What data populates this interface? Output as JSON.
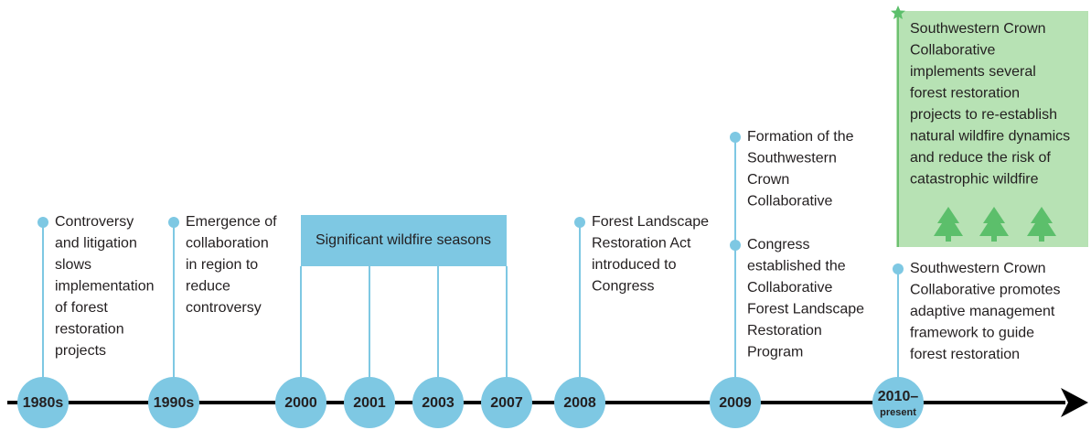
{
  "timeline": [
    {
      "year": "1980s",
      "events": [
        {
          "lines": [
            "Controversy",
            "and litigation",
            "slows",
            "implementation",
            "of forest",
            "restoration",
            "projects"
          ]
        }
      ]
    },
    {
      "year": "1990s",
      "events": [
        {
          "lines": [
            "Emergence of",
            "collaboration",
            "in region to",
            "reduce",
            "controversy"
          ]
        }
      ]
    },
    {
      "year": "2000"
    },
    {
      "year": "2001"
    },
    {
      "year": "2003"
    },
    {
      "year": "2007"
    },
    {
      "year": "2008",
      "events": [
        {
          "lines": [
            "Forest Landscape",
            "Restoration Act",
            "introduced to",
            "Congress"
          ]
        }
      ]
    },
    {
      "year": "2009",
      "events": [
        {
          "lines": [
            "Formation of the",
            "Southwestern",
            "Crown",
            "Collaborative"
          ]
        },
        {
          "lines": [
            "Congress",
            "established the",
            "Collaborative",
            "Forest Landscape",
            "Restoration",
            "Program"
          ]
        }
      ]
    },
    {
      "year": "2010–",
      "subtitle": "present",
      "highlight": {
        "lines": [
          "Southwestern Crown",
          "Collaborative",
          "implements several",
          "forest restoration",
          "projects to re-establish",
          "natural wildfire dynamics",
          "and reduce the risk of",
          "catastrophic wildfire"
        ]
      },
      "events": [
        {
          "lines": [
            "Southwestern Crown",
            "Collaborative promotes",
            "adaptive management",
            "framework to guide",
            "forest restoration"
          ]
        }
      ]
    }
  ],
  "span": {
    "label": "Significant wildfire seasons"
  }
}
